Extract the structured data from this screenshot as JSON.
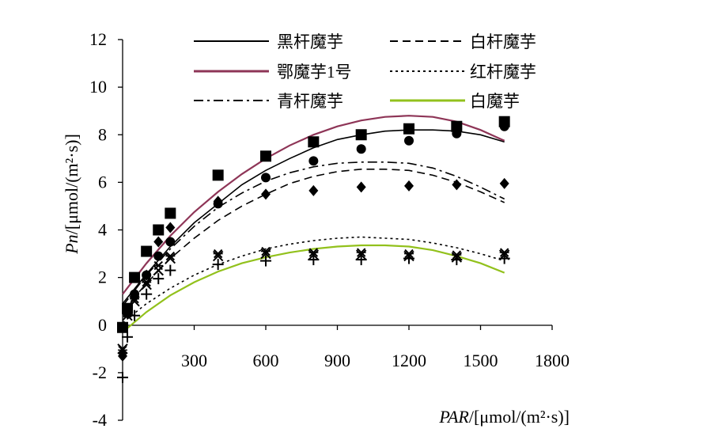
{
  "chart_data": {
    "type": "scatter",
    "xlabel": {
      "italic": "PAR",
      "rest": "/[μmol/(m²·s)]"
    },
    "ylabel": {
      "italic": "Pn",
      "rest": "/[μmol/(m²·s)]"
    },
    "xlim": [
      0,
      1800
    ],
    "ylim": [
      -4,
      12
    ],
    "x_ticks": [
      "300",
      "600",
      "900",
      "1200",
      "1500",
      "1800"
    ],
    "y_ticks": [
      "12",
      "10",
      "8",
      "6",
      "4",
      "2",
      "0",
      "-2",
      "-4"
    ],
    "legend_placement": "top",
    "series": [
      {
        "name": "黑杆魔芋",
        "color": "#000000",
        "dash": "solid",
        "marker": "circle",
        "points": [
          [
            0,
            -0.1
          ],
          [
            20,
            0.5
          ],
          [
            50,
            1.3
          ],
          [
            100,
            2.1
          ],
          [
            150,
            2.9
          ],
          [
            200,
            3.5
          ],
          [
            400,
            5.1
          ],
          [
            600,
            6.2
          ],
          [
            800,
            6.9
          ],
          [
            1000,
            7.4
          ],
          [
            1200,
            7.75
          ],
          [
            1400,
            8.05
          ],
          [
            1600,
            8.35
          ]
        ],
        "fit": [
          [
            0,
            0.9
          ],
          [
            100,
            2.15
          ],
          [
            200,
            3.3
          ],
          [
            300,
            4.3
          ],
          [
            400,
            5.1
          ],
          [
            500,
            5.9
          ],
          [
            600,
            6.5
          ],
          [
            700,
            7.0
          ],
          [
            800,
            7.45
          ],
          [
            900,
            7.8
          ],
          [
            1000,
            8.0
          ],
          [
            1100,
            8.15
          ],
          [
            1200,
            8.2
          ],
          [
            1300,
            8.2
          ],
          [
            1400,
            8.15
          ],
          [
            1500,
            8.0
          ],
          [
            1600,
            7.7
          ]
        ]
      },
      {
        "name": "白杆魔芋",
        "color": "#000000",
        "dash": "dash",
        "marker": "diamond",
        "points": [
          [
            0,
            -1.3
          ],
          [
            20,
            0.5
          ],
          [
            50,
            1.2
          ],
          [
            100,
            2.1
          ],
          [
            150,
            3.5
          ],
          [
            200,
            4.1
          ],
          [
            400,
            5.2
          ],
          [
            600,
            5.5
          ],
          [
            800,
            5.65
          ],
          [
            1000,
            5.8
          ],
          [
            1200,
            5.85
          ],
          [
            1400,
            5.9
          ],
          [
            1600,
            5.95
          ]
        ],
        "fit": [
          [
            0,
            0.6
          ],
          [
            100,
            1.75
          ],
          [
            200,
            2.8
          ],
          [
            300,
            3.65
          ],
          [
            400,
            4.4
          ],
          [
            500,
            5.0
          ],
          [
            600,
            5.5
          ],
          [
            700,
            5.95
          ],
          [
            800,
            6.25
          ],
          [
            900,
            6.45
          ],
          [
            1000,
            6.55
          ],
          [
            1100,
            6.55
          ],
          [
            1200,
            6.5
          ],
          [
            1300,
            6.3
          ],
          [
            1400,
            6.0
          ],
          [
            1500,
            5.6
          ],
          [
            1600,
            5.15
          ]
        ]
      },
      {
        "name": "鄂魔芋1号",
        "color": "#8e3557",
        "dash": "solid",
        "marker": "square",
        "points": [
          [
            0,
            -0.1
          ],
          [
            20,
            0.7
          ],
          [
            50,
            2.0
          ],
          [
            100,
            3.1
          ],
          [
            150,
            4.0
          ],
          [
            200,
            4.7
          ],
          [
            400,
            6.3
          ],
          [
            600,
            7.1
          ],
          [
            800,
            7.7
          ],
          [
            1000,
            8.0
          ],
          [
            1200,
            8.25
          ],
          [
            1400,
            8.35
          ],
          [
            1600,
            8.55
          ]
        ],
        "fit": [
          [
            0,
            1.3
          ],
          [
            100,
            2.6
          ],
          [
            200,
            3.75
          ],
          [
            300,
            4.75
          ],
          [
            400,
            5.6
          ],
          [
            500,
            6.35
          ],
          [
            600,
            7.0
          ],
          [
            700,
            7.55
          ],
          [
            800,
            8.0
          ],
          [
            900,
            8.35
          ],
          [
            1000,
            8.6
          ],
          [
            1100,
            8.75
          ],
          [
            1200,
            8.8
          ],
          [
            1300,
            8.75
          ],
          [
            1400,
            8.55
          ],
          [
            1500,
            8.2
          ],
          [
            1600,
            7.75
          ]
        ]
      },
      {
        "name": "红杆魔芋",
        "color": "#000000",
        "dash": "dot",
        "marker": "cross",
        "points": [
          [
            0,
            -1.05
          ],
          [
            20,
            0.5
          ],
          [
            50,
            1.1
          ],
          [
            100,
            1.8
          ],
          [
            150,
            2.5
          ],
          [
            200,
            2.9
          ],
          [
            400,
            3.0
          ],
          [
            600,
            3.1
          ],
          [
            800,
            3.05
          ],
          [
            1000,
            3.05
          ],
          [
            1200,
            3.0
          ],
          [
            1400,
            2.95
          ],
          [
            1600,
            3.05
          ]
        ],
        "fit": [
          [
            0,
            0.1
          ],
          [
            100,
            0.9
          ],
          [
            200,
            1.55
          ],
          [
            300,
            2.1
          ],
          [
            400,
            2.55
          ],
          [
            500,
            2.9
          ],
          [
            600,
            3.2
          ],
          [
            700,
            3.4
          ],
          [
            800,
            3.55
          ],
          [
            900,
            3.65
          ],
          [
            1000,
            3.7
          ],
          [
            1100,
            3.65
          ],
          [
            1200,
            3.6
          ],
          [
            1300,
            3.45
          ],
          [
            1400,
            3.25
          ],
          [
            1500,
            3.0
          ],
          [
            1600,
            2.7
          ]
        ]
      },
      {
        "name": "青杆魔芋",
        "color": "#000000",
        "dash": "dashdot",
        "marker": "x",
        "points": [
          [
            0,
            -1.0
          ],
          [
            20,
            0.4
          ],
          [
            50,
            1.0
          ],
          [
            100,
            1.7
          ],
          [
            150,
            2.3
          ],
          [
            200,
            2.8
          ],
          [
            400,
            2.9
          ],
          [
            600,
            3.0
          ],
          [
            800,
            2.95
          ],
          [
            1000,
            2.95
          ],
          [
            1200,
            2.9
          ],
          [
            1400,
            2.85
          ],
          [
            1600,
            2.95
          ]
        ],
        "fit": [
          [
            0,
            0.8
          ],
          [
            100,
            2.1
          ],
          [
            200,
            3.2
          ],
          [
            300,
            4.15
          ],
          [
            400,
            4.95
          ],
          [
            500,
            5.55
          ],
          [
            600,
            6.05
          ],
          [
            700,
            6.4
          ],
          [
            800,
            6.65
          ],
          [
            900,
            6.8
          ],
          [
            1000,
            6.85
          ],
          [
            1100,
            6.85
          ],
          [
            1200,
            6.8
          ],
          [
            1300,
            6.6
          ],
          [
            1400,
            6.25
          ],
          [
            1500,
            5.8
          ],
          [
            1600,
            5.3
          ]
        ]
      },
      {
        "name": "白魔芋",
        "color": "#92c11c",
        "dash": "solid",
        "marker": "plus",
        "points": [
          [
            0,
            -2.2
          ],
          [
            20,
            -0.5
          ],
          [
            50,
            0.4
          ],
          [
            100,
            1.3
          ],
          [
            150,
            1.95
          ],
          [
            200,
            2.3
          ],
          [
            400,
            2.55
          ],
          [
            600,
            2.7
          ],
          [
            800,
            2.75
          ],
          [
            1000,
            2.75
          ],
          [
            1200,
            2.8
          ],
          [
            1400,
            2.75
          ],
          [
            1600,
            2.8
          ]
        ],
        "fit": [
          [
            0,
            -0.3
          ],
          [
            100,
            0.55
          ],
          [
            200,
            1.25
          ],
          [
            300,
            1.8
          ],
          [
            400,
            2.25
          ],
          [
            500,
            2.6
          ],
          [
            600,
            2.85
          ],
          [
            700,
            3.05
          ],
          [
            800,
            3.2
          ],
          [
            900,
            3.3
          ],
          [
            1000,
            3.35
          ],
          [
            1100,
            3.35
          ],
          [
            1200,
            3.3
          ],
          [
            1300,
            3.15
          ],
          [
            1400,
            2.9
          ],
          [
            1500,
            2.6
          ],
          [
            1600,
            2.2
          ]
        ]
      }
    ]
  }
}
